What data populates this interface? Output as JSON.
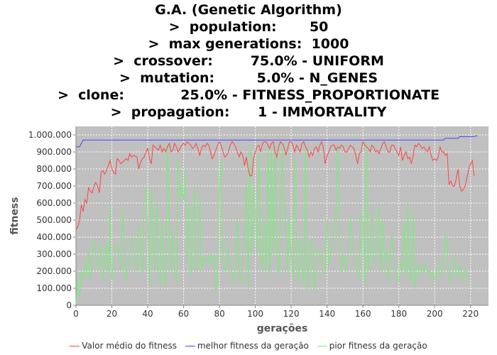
{
  "title_lines": [
    "G.A. (Genetic Algorithm)",
    ">  population:       50",
    ">  max generations:  1000",
    ">  crossover:        75.0% - UNIFORM",
    ">  mutation:         5.0% - N_GENES",
    ">  clone:            25.0% - FITNESS_PROPORTIONATE",
    ">  propagation:      1 - IMMORTALITY"
  ],
  "chart_data": {
    "type": "line",
    "xlabel": "gerações",
    "ylabel": "fitness",
    "xlim": [
      0,
      230
    ],
    "ylim": [
      0,
      1050000
    ],
    "x_ticks": [
      0,
      20,
      40,
      60,
      80,
      100,
      120,
      140,
      160,
      180,
      200,
      220
    ],
    "x_tick_labels": [
      "0",
      "20",
      "40",
      "60",
      "80",
      "100",
      "120",
      "140",
      "160",
      "180",
      "200",
      "220"
    ],
    "y_ticks": [
      0,
      100000,
      200000,
      300000,
      400000,
      500000,
      600000,
      700000,
      800000,
      900000,
      1000000
    ],
    "y_tick_labels": [
      "0",
      "100.000",
      "200.000",
      "300.000",
      "400.000",
      "500.000",
      "600.000",
      "700.000",
      "800.000",
      "900.000",
      "1.000.000"
    ],
    "grid": true,
    "plot_background": "#c0c0c0",
    "legend_position": "bottom",
    "series": [
      {
        "name": "Valor médio do fitness",
        "color": "#ff4444",
        "x_start": 0,
        "values": [
          445000,
          460000,
          500000,
          590000,
          550000,
          620000,
          600000,
          690000,
          670000,
          660000,
          700000,
          720000,
          700000,
          660000,
          780000,
          790000,
          770000,
          790000,
          820000,
          850000,
          800000,
          780000,
          770000,
          860000,
          850000,
          830000,
          840000,
          850000,
          860000,
          850000,
          890000,
          870000,
          880000,
          875000,
          870000,
          800000,
          840000,
          860000,
          870000,
          900000,
          920000,
          860000,
          830000,
          940000,
          930000,
          920000,
          910000,
          940000,
          900000,
          920000,
          900000,
          930000,
          950000,
          900000,
          910000,
          950000,
          930000,
          900000,
          920000,
          940000,
          950000,
          940000,
          960000,
          950000,
          940000,
          920000,
          930000,
          950000,
          920000,
          880000,
          920000,
          940000,
          930000,
          950000,
          940000,
          900000,
          860000,
          880000,
          910000,
          940000,
          960000,
          940000,
          900000,
          870000,
          880000,
          900000,
          940000,
          960000,
          950000,
          930000,
          900000,
          870000,
          900000,
          880000,
          820000,
          870000,
          800000,
          760000,
          760000,
          860000,
          900000,
          930000,
          940000,
          900000,
          950000,
          960000,
          960000,
          940000,
          920000,
          950000,
          960000,
          900000,
          870000,
          930000,
          960000,
          950000,
          930000,
          880000,
          920000,
          960000,
          960000,
          940000,
          900000,
          940000,
          920000,
          900000,
          950000,
          960000,
          930000,
          910000,
          870000,
          900000,
          880000,
          920000,
          930000,
          900000,
          940000,
          960000,
          920000,
          830000,
          880000,
          900000,
          930000,
          940000,
          940000,
          910000,
          930000,
          920000,
          940000,
          930000,
          900000,
          900000,
          920000,
          940000,
          930000,
          920000,
          880000,
          830000,
          890000,
          900000,
          960000,
          940000,
          930000,
          920000,
          900000,
          940000,
          930000,
          900000,
          910000,
          890000,
          920000,
          950000,
          960000,
          930000,
          900000,
          900000,
          940000,
          940000,
          920000,
          900000,
          880000,
          930000,
          850000,
          880000,
          900000,
          860000,
          870000,
          830000,
          880000,
          940000,
          930000,
          950000,
          940000,
          920000,
          930000,
          910000,
          900000,
          930000,
          880000,
          850000,
          860000,
          850000,
          870000,
          930000,
          900000,
          900000,
          880000,
          890000,
          710000,
          730000,
          700000,
          700000,
          740000,
          800000,
          700000,
          670000,
          680000,
          700000,
          750000,
          800000,
          830000,
          850000,
          760000
        ],
        "line_width": 1
      },
      {
        "name": "melhor fitness da geração",
        "color": "#4444ff",
        "x_start": 0,
        "values": [
          930000,
          930000,
          930000,
          950000,
          970000,
          970000,
          970000,
          970000,
          970000,
          970000,
          970000,
          970000,
          970000,
          970000,
          970000,
          970000,
          970000,
          970000,
          970000,
          970000,
          970000,
          970000,
          970000,
          970000,
          970000,
          970000,
          970000,
          970000,
          970000,
          970000,
          970000,
          970000,
          970000,
          970000,
          970000,
          970000,
          970000,
          970000,
          970000,
          970000,
          970000,
          970000,
          970000,
          970000,
          970000,
          970000,
          970000,
          970000,
          970000,
          970000,
          970000,
          970000,
          970000,
          970000,
          970000,
          970000,
          970000,
          970000,
          970000,
          970000,
          970000,
          970000,
          970000,
          970000,
          970000,
          970000,
          970000,
          970000,
          970000,
          970000,
          970000,
          970000,
          970000,
          970000,
          970000,
          970000,
          970000,
          970000,
          970000,
          970000,
          970000,
          970000,
          970000,
          970000,
          970000,
          970000,
          970000,
          970000,
          970000,
          970000,
          970000,
          970000,
          970000,
          970000,
          970000,
          970000,
          970000,
          970000,
          970000,
          970000,
          970000,
          970000,
          970000,
          970000,
          970000,
          970000,
          970000,
          970000,
          970000,
          970000,
          970000,
          970000,
          970000,
          970000,
          970000,
          970000,
          970000,
          970000,
          970000,
          970000,
          970000,
          970000,
          970000,
          970000,
          970000,
          970000,
          970000,
          970000,
          970000,
          970000,
          970000,
          970000,
          970000,
          970000,
          970000,
          970000,
          970000,
          970000,
          970000,
          970000,
          970000,
          970000,
          970000,
          970000,
          970000,
          970000,
          970000,
          970000,
          970000,
          970000,
          970000,
          970000,
          970000,
          970000,
          970000,
          970000,
          970000,
          970000,
          970000,
          970000,
          970000,
          970000,
          970000,
          970000,
          970000,
          970000,
          970000,
          970000,
          970000,
          970000,
          970000,
          970000,
          970000,
          970000,
          970000,
          970000,
          970000,
          970000,
          970000,
          970000,
          970000,
          970000,
          970000,
          970000,
          970000,
          970000,
          970000,
          970000,
          970000,
          970000,
          970000,
          970000,
          970000,
          970000,
          970000,
          970000,
          970000,
          970000,
          970000,
          970000,
          970000,
          970000,
          970000,
          970000,
          970000,
          970000,
          980000,
          980000,
          980000,
          980000,
          980000,
          980000,
          980000,
          980000,
          990000,
          990000,
          990000,
          990000,
          990000,
          990000,
          990000,
          990000,
          990000,
          995000,
          995000
        ],
        "line_width": 1
      },
      {
        "name": "pior fitness da geração",
        "color": "#77ee77",
        "x_start": 0,
        "values": [
          10000,
          170000,
          60000,
          200000,
          150000,
          240000,
          180000,
          320000,
          150000,
          250000,
          380000,
          300000,
          230000,
          210000,
          370000,
          150000,
          240000,
          350000,
          200000,
          580000,
          150000,
          250000,
          350000,
          350000,
          280000,
          200000,
          560000,
          350000,
          150000,
          230000,
          280000,
          400000,
          340000,
          260000,
          200000,
          460000,
          400000,
          180000,
          600000,
          700000,
          460000,
          120000,
          700000,
          400000,
          200000,
          600000,
          180000,
          120000,
          500000,
          200000,
          120000,
          950000,
          380000,
          200000,
          430000,
          200000,
          140000,
          860000,
          640000,
          700000,
          620000,
          800000,
          270000,
          590000,
          170000,
          380000,
          700000,
          200000,
          250000,
          650000,
          200000,
          280000,
          250000,
          280000,
          250000,
          300000,
          250000,
          300000,
          80000,
          200000,
          700000,
          850000,
          280000,
          200000,
          250000,
          360000,
          200000,
          180000,
          120000,
          250000,
          500000,
          180000,
          130000,
          300000,
          420000,
          720000,
          100000,
          940000,
          300000,
          700000,
          540000,
          300000,
          900000,
          250000,
          200000,
          500000,
          220000,
          930000,
          160000,
          900000,
          300000,
          940000,
          330000,
          180000,
          500000,
          950000,
          600000,
          480000,
          200000,
          520000,
          300000,
          150000,
          880000,
          220000,
          140000,
          400000,
          250000,
          130000,
          930000,
          90000,
          240000,
          380000,
          310000,
          80000,
          290000,
          320000,
          280000,
          300000,
          180000,
          200000,
          500000,
          230000,
          300000,
          360000,
          450000,
          550000,
          930000,
          300000,
          190000,
          300000,
          260000,
          200000,
          340000,
          520000,
          410000,
          300000,
          280000,
          200000,
          160000,
          560000,
          480000,
          120000,
          960000,
          200000,
          300000,
          560000,
          250000,
          300000,
          400000,
          590000,
          200000,
          500000,
          270000,
          320000,
          140000,
          300000,
          410000,
          300000,
          200000,
          150000,
          140000,
          250000,
          200000,
          480000,
          160000,
          600000,
          200000,
          140000,
          540000,
          100000,
          240000,
          220000,
          180000,
          230000,
          190000,
          240000,
          200000,
          200000,
          160000,
          200000,
          150000,
          180000,
          250000,
          180000,
          160000,
          300000,
          420000,
          300000,
          160000,
          130000,
          180000,
          280000,
          200000,
          160000,
          240000,
          180000,
          150000,
          210000,
          180000,
          140000
        ],
        "line_width": 1
      }
    ]
  }
}
